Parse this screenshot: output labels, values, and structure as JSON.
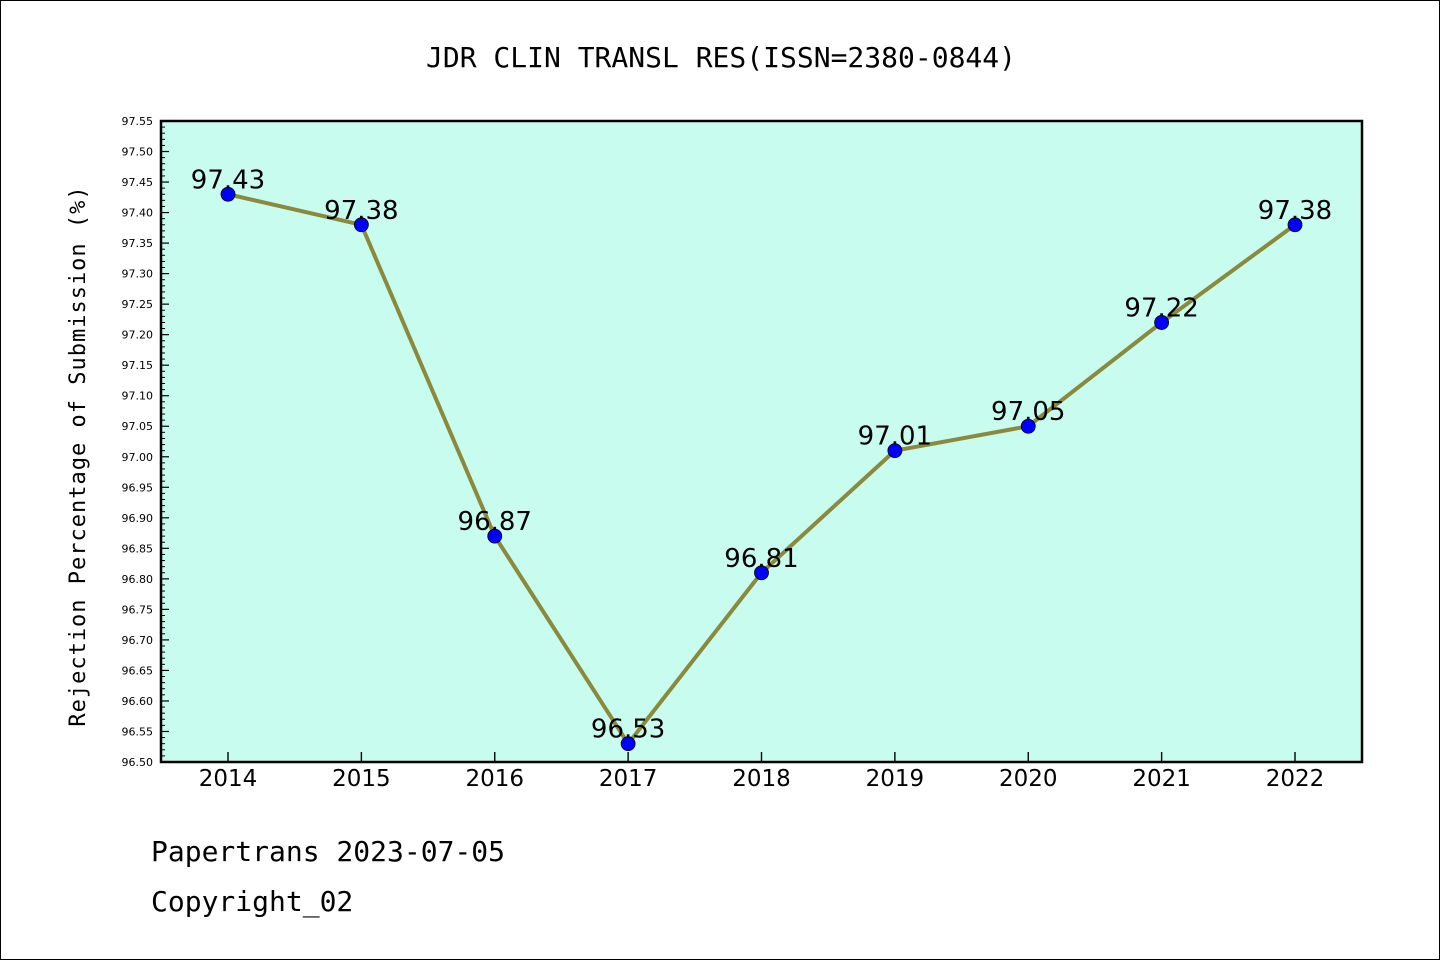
{
  "chart_data": {
    "type": "line",
    "title": "JDR CLIN TRANSL RES(ISSN=2380-0844)",
    "xlabel": "",
    "ylabel": "Rejection Percentage of Submission (%)",
    "categories": [
      "2014",
      "2015",
      "2016",
      "2017",
      "2018",
      "2019",
      "2020",
      "2021",
      "2022"
    ],
    "series": [
      {
        "values": [
          97.43,
          97.38,
          96.87,
          96.53,
          96.81,
          97.01,
          97.05,
          97.22,
          97.38
        ]
      }
    ],
    "data_labels": [
      "97.43",
      "97.38",
      "96.87",
      "96.53",
      "96.81",
      "97.01",
      "97.05",
      "97.22",
      "97.38"
    ],
    "ylim": [
      96.5,
      97.55
    ],
    "yticks": [
      "96.50",
      "96.55",
      "96.60",
      "96.65",
      "96.70",
      "96.75",
      "96.80",
      "96.85",
      "96.90",
      "96.95",
      "97.00",
      "97.05",
      "97.10",
      "97.15",
      "97.20",
      "97.25",
      "97.30",
      "97.35",
      "97.40",
      "97.45",
      "97.50",
      "97.55"
    ],
    "grid": false,
    "legend": "none",
    "colors": {
      "plot_background": "#c8fcee",
      "line": "#8b8a3c",
      "marker": "#0000ff"
    }
  },
  "footer": {
    "line1": "Papertrans 2023-07-05",
    "line2": "Copyright_02"
  }
}
